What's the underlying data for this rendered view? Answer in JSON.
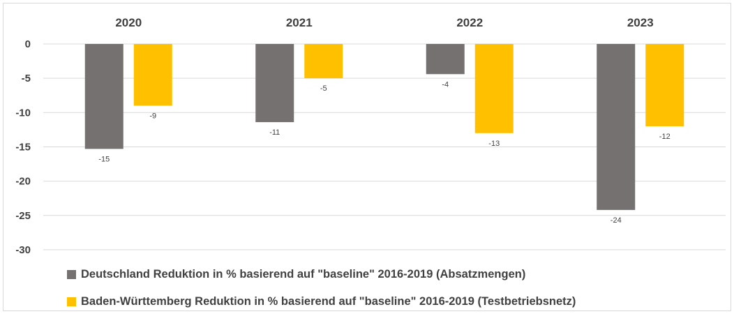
{
  "chart_data": {
    "type": "bar",
    "categories": [
      "2020",
      "2021",
      "2022",
      "2023"
    ],
    "series": [
      {
        "name": "Deutschland Reduktion in % basierend auf \"baseline\" 2016-2019 (Absatzmengen)",
        "color": "#767171",
        "values": [
          -15.3,
          -11.4,
          -4.4,
          -24.2
        ],
        "labels": [
          "-15",
          "-11",
          "-4",
          "-24"
        ]
      },
      {
        "name": "Baden-Württemberg Reduktion in % basierend auf \"baseline\" 2016-2019 (Testbetriebsnetz)",
        "color": "#ffc000",
        "values": [
          -9,
          -5,
          -13,
          -12
        ],
        "labels": [
          "-9",
          "-5",
          "-13",
          "-12"
        ]
      }
    ],
    "yticks": [
      "0",
      "-5",
      "-10",
      "-15",
      "-20",
      "-25",
      "-30"
    ],
    "ylim": [
      -30,
      0
    ],
    "grid": true,
    "legend_position": "bottom"
  }
}
